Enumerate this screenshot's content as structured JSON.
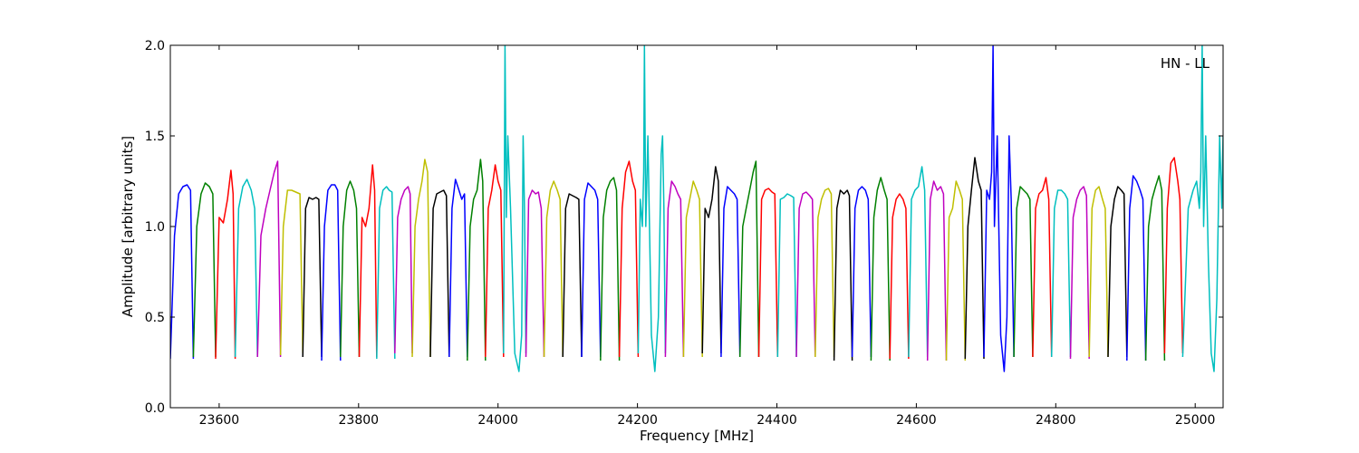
{
  "chart_data": {
    "type": "line",
    "title": "",
    "xlabel": "Frequency [MHz]",
    "ylabel": "Amplitude [arbitrary units]",
    "annotation": "HN - LL",
    "xlim": [
      23530,
      25040
    ],
    "ylim": [
      0.0,
      2.0
    ],
    "x_ticks": [
      23600,
      23800,
      24000,
      24200,
      24400,
      24600,
      24800,
      25000
    ],
    "y_ticks": [
      0.0,
      0.5,
      1.0,
      1.5,
      2.0
    ],
    "y_tick_labels": [
      "0.0",
      "0.5",
      "1.0",
      "1.5",
      "2.0"
    ],
    "grid": false,
    "color_cycle": [
      "#0000ff",
      "#008000",
      "#ff0000",
      "#00bfbf",
      "#bf00bf",
      "#bfbf00",
      "#000000"
    ],
    "segments": [
      {
        "x": [
          23530,
          23536,
          23542,
          23548,
          23554,
          23559,
          23563
        ],
        "y": [
          0.27,
          0.95,
          1.18,
          1.22,
          1.23,
          1.2,
          0.27
        ]
      },
      {
        "x": [
          23563,
          23568,
          23574,
          23580,
          23586,
          23591,
          23595
        ],
        "y": [
          0.28,
          1.0,
          1.18,
          1.24,
          1.22,
          1.18,
          0.28
        ]
      },
      {
        "x": [
          23595,
          23600,
          23606,
          23612,
          23617,
          23620,
          23623
        ],
        "y": [
          0.27,
          1.05,
          1.02,
          1.15,
          1.31,
          1.18,
          0.27
        ]
      },
      {
        "x": [
          23623,
          23628,
          23634,
          23640,
          23646,
          23651,
          23655
        ],
        "y": [
          0.28,
          1.1,
          1.22,
          1.26,
          1.2,
          1.1,
          0.28
        ]
      },
      {
        "x": [
          23655,
          23660,
          23667,
          23673,
          23679,
          23684,
          23688
        ],
        "y": [
          0.28,
          0.95,
          1.1,
          1.2,
          1.3,
          1.36,
          0.28
        ]
      },
      {
        "x": [
          23688,
          23692,
          23698,
          23704,
          23710,
          23716,
          23720
        ],
        "y": [
          0.29,
          1.0,
          1.2,
          1.2,
          1.19,
          1.18,
          0.3
        ]
      },
      {
        "x": [
          23720,
          23724,
          23729,
          23734,
          23739,
          23743,
          23747
        ],
        "y": [
          0.28,
          1.1,
          1.16,
          1.15,
          1.16,
          1.15,
          0.28
        ]
      },
      {
        "x": [
          23747,
          23751,
          23756,
          23761,
          23766,
          23770,
          23774
        ],
        "y": [
          0.26,
          1.0,
          1.2,
          1.23,
          1.23,
          1.2,
          0.26
        ]
      },
      {
        "x": [
          23774,
          23778,
          23783,
          23788,
          23793,
          23797,
          23801
        ],
        "y": [
          0.28,
          1.0,
          1.2,
          1.25,
          1.2,
          1.1,
          0.28
        ]
      },
      {
        "x": [
          23801,
          23805,
          23810,
          23815,
          23820,
          23823,
          23826
        ],
        "y": [
          0.28,
          1.05,
          1.0,
          1.1,
          1.34,
          1.2,
          0.28
        ]
      },
      {
        "x": [
          23826,
          23830,
          23835,
          23840,
          23844,
          23848,
          23852
        ],
        "y": [
          0.27,
          1.1,
          1.2,
          1.22,
          1.2,
          1.19,
          0.27
        ]
      },
      {
        "x": [
          23852,
          23856,
          23861,
          23866,
          23871,
          23874,
          23877
        ],
        "y": [
          0.3,
          1.05,
          1.15,
          1.2,
          1.22,
          1.18,
          0.3
        ]
      },
      {
        "x": [
          23877,
          23881,
          23886,
          23891,
          23895,
          23899,
          23903
        ],
        "y": [
          0.28,
          1.0,
          1.15,
          1.25,
          1.37,
          1.3,
          0.28
        ]
      },
      {
        "x": [
          23903,
          23907,
          23912,
          23917,
          23922,
          23926,
          23930
        ],
        "y": [
          0.28,
          1.1,
          1.18,
          1.19,
          1.2,
          1.17,
          0.28
        ]
      },
      {
        "x": [
          23930,
          23934,
          23939,
          23944,
          23948,
          23952,
          23956
        ],
        "y": [
          0.28,
          1.1,
          1.26,
          1.2,
          1.15,
          1.18,
          0.28
        ]
      },
      {
        "x": [
          23956,
          23960,
          23965,
          23970,
          23975,
          23978,
          23982
        ],
        "y": [
          0.26,
          1.0,
          1.15,
          1.2,
          1.37,
          1.25,
          0.26
        ]
      },
      {
        "x": [
          23982,
          23986,
          23991,
          23996,
          24000,
          24004,
          24008
        ],
        "y": [
          0.28,
          1.1,
          1.2,
          1.34,
          1.25,
          1.2,
          0.28
        ]
      },
      {
        "x": [
          24008,
          24010,
          24012,
          24014,
          24018,
          24024,
          24030,
          24034,
          24036,
          24038,
          24040
        ],
        "y": [
          0.3,
          2.0,
          1.05,
          1.5,
          1.1,
          0.3,
          0.2,
          0.4,
          1.5,
          1.1,
          0.3
        ]
      },
      {
        "x": [
          24040,
          24044,
          24049,
          24054,
          24058,
          24062,
          24066
        ],
        "y": [
          0.28,
          1.15,
          1.2,
          1.18,
          1.19,
          1.1,
          0.28
        ]
      },
      {
        "x": [
          24066,
          24070,
          24075,
          24080,
          24085,
          24089,
          24093
        ],
        "y": [
          0.28,
          1.05,
          1.2,
          1.25,
          1.2,
          1.15,
          0.28
        ]
      },
      {
        "x": [
          24093,
          24097,
          24102,
          24107,
          24112,
          24116,
          24120
        ],
        "y": [
          0.28,
          1.1,
          1.18,
          1.17,
          1.16,
          1.15,
          0.28
        ]
      },
      {
        "x": [
          24120,
          24124,
          24129,
          24134,
          24139,
          24143,
          24147
        ],
        "y": [
          0.28,
          1.15,
          1.24,
          1.22,
          1.2,
          1.15,
          0.28
        ]
      },
      {
        "x": [
          24147,
          24151,
          24156,
          24161,
          24166,
          24170,
          24174
        ],
        "y": [
          0.26,
          1.05,
          1.2,
          1.25,
          1.27,
          1.2,
          0.26
        ]
      },
      {
        "x": [
          24174,
          24178,
          24183,
          24188,
          24193,
          24197,
          24201
        ],
        "y": [
          0.28,
          1.1,
          1.3,
          1.36,
          1.25,
          1.2,
          0.28
        ]
      },
      {
        "x": [
          24201,
          24204,
          24207,
          24209,
          24210,
          24212,
          24215,
          24220,
          24225,
          24230,
          24234,
          24236,
          24238,
          24240
        ],
        "y": [
          0.3,
          1.15,
          1.0,
          1.3,
          2.0,
          1.0,
          1.5,
          0.4,
          0.2,
          0.5,
          1.4,
          1.5,
          1.1,
          0.3
        ]
      },
      {
        "x": [
          24240,
          24244,
          24249,
          24254,
          24258,
          24262,
          24266
        ],
        "y": [
          0.28,
          1.1,
          1.25,
          1.22,
          1.18,
          1.15,
          0.28
        ]
      },
      {
        "x": [
          24266,
          24270,
          24275,
          24280,
          24285,
          24289,
          24293
        ],
        "y": [
          0.28,
          1.05,
          1.15,
          1.25,
          1.2,
          1.15,
          0.28
        ]
      },
      {
        "x": [
          24293,
          24297,
          24302,
          24307,
          24312,
          24316,
          24320
        ],
        "y": [
          0.3,
          1.1,
          1.05,
          1.15,
          1.33,
          1.25,
          0.3
        ]
      },
      {
        "x": [
          24320,
          24324,
          24329,
          24334,
          24339,
          24343,
          24347
        ],
        "y": [
          0.28,
          1.1,
          1.22,
          1.2,
          1.18,
          1.15,
          0.28
        ]
      },
      {
        "x": [
          24347,
          24351,
          24356,
          24361,
          24366,
          24370,
          24374
        ],
        "y": [
          0.28,
          1.0,
          1.1,
          1.2,
          1.3,
          1.36,
          0.28
        ]
      },
      {
        "x": [
          24374,
          24378,
          24383,
          24388,
          24393,
          24397,
          24401
        ],
        "y": [
          0.28,
          1.15,
          1.2,
          1.21,
          1.19,
          1.18,
          0.28
        ]
      },
      {
        "x": [
          24401,
          24405,
          24410,
          24415,
          24420,
          24424,
          24428
        ],
        "y": [
          0.28,
          1.15,
          1.16,
          1.18,
          1.17,
          1.16,
          0.28
        ]
      },
      {
        "x": [
          24428,
          24432,
          24437,
          24442,
          24447,
          24451,
          24455
        ],
        "y": [
          0.28,
          1.1,
          1.18,
          1.19,
          1.17,
          1.15,
          0.28
        ]
      },
      {
        "x": [
          24455,
          24459,
          24464,
          24469,
          24474,
          24478,
          24482
        ],
        "y": [
          0.28,
          1.05,
          1.15,
          1.2,
          1.21,
          1.18,
          0.28
        ]
      },
      {
        "x": [
          24482,
          24486,
          24491,
          24496,
          24501,
          24504,
          24508
        ],
        "y": [
          0.26,
          1.1,
          1.2,
          1.18,
          1.2,
          1.17,
          0.26
        ]
      },
      {
        "x": [
          24508,
          24512,
          24517,
          24522,
          24527,
          24531,
          24535
        ],
        "y": [
          0.28,
          1.1,
          1.2,
          1.22,
          1.2,
          1.15,
          0.28
        ]
      },
      {
        "x": [
          24535,
          24539,
          24544,
          24549,
          24554,
          24558,
          24562
        ],
        "y": [
          0.26,
          1.05,
          1.2,
          1.27,
          1.2,
          1.15,
          0.26
        ]
      },
      {
        "x": [
          24562,
          24566,
          24571,
          24576,
          24581,
          24585,
          24589
        ],
        "y": [
          0.27,
          1.05,
          1.15,
          1.18,
          1.15,
          1.1,
          0.27
        ]
      },
      {
        "x": [
          24589,
          24593,
          24598,
          24603,
          24608,
          24612,
          24616
        ],
        "y": [
          0.28,
          1.15,
          1.2,
          1.22,
          1.33,
          1.2,
          0.28
        ]
      },
      {
        "x": [
          24616,
          24620,
          24625,
          24630,
          24635,
          24639,
          24643
        ],
        "y": [
          0.26,
          1.15,
          1.25,
          1.2,
          1.22,
          1.18,
          0.26
        ]
      },
      {
        "x": [
          24643,
          24647,
          24652,
          24657,
          24662,
          24666,
          24670
        ],
        "y": [
          0.26,
          1.05,
          1.1,
          1.25,
          1.2,
          1.15,
          0.26
        ]
      },
      {
        "x": [
          24670,
          24674,
          24679,
          24684,
          24689,
          24693,
          24697
        ],
        "y": [
          0.27,
          1.0,
          1.2,
          1.38,
          1.25,
          1.2,
          0.27
        ]
      },
      {
        "x": [
          24697,
          24701,
          24705,
          24708,
          24710,
          24712,
          24716,
          24721,
          24726,
          24730,
          24733,
          24736,
          24740
        ],
        "y": [
          0.28,
          1.2,
          1.15,
          1.3,
          2.0,
          1.0,
          1.5,
          0.4,
          0.2,
          0.5,
          1.5,
          1.15,
          0.28
        ]
      },
      {
        "x": [
          24740,
          24744,
          24749,
          24754,
          24759,
          24763,
          24767
        ],
        "y": [
          0.28,
          1.1,
          1.22,
          1.2,
          1.18,
          1.15,
          0.28
        ]
      },
      {
        "x": [
          24767,
          24771,
          24776,
          24781,
          24786,
          24790,
          24794
        ],
        "y": [
          0.28,
          1.1,
          1.18,
          1.2,
          1.27,
          1.15,
          0.28
        ]
      },
      {
        "x": [
          24794,
          24798,
          24803,
          24808,
          24813,
          24817,
          24821
        ],
        "y": [
          0.28,
          1.1,
          1.2,
          1.2,
          1.18,
          1.15,
          0.28
        ]
      },
      {
        "x": [
          24821,
          24825,
          24830,
          24835,
          24840,
          24844,
          24848
        ],
        "y": [
          0.27,
          1.05,
          1.15,
          1.2,
          1.22,
          1.17,
          0.27
        ]
      },
      {
        "x": [
          24848,
          24852,
          24857,
          24862,
          24867,
          24871,
          24875
        ],
        "y": [
          0.28,
          1.1,
          1.2,
          1.22,
          1.15,
          1.1,
          0.28
        ]
      },
      {
        "x": [
          24875,
          24879,
          24884,
          24889,
          24894,
          24898,
          24902
        ],
        "y": [
          0.28,
          1.0,
          1.15,
          1.22,
          1.2,
          1.18,
          0.28
        ]
      },
      {
        "x": [
          24902,
          24906,
          24911,
          24916,
          24921,
          24925,
          24929
        ],
        "y": [
          0.26,
          1.1,
          1.28,
          1.25,
          1.2,
          1.15,
          0.26
        ]
      },
      {
        "x": [
          24929,
          24933,
          24938,
          24943,
          24948,
          24952,
          24956
        ],
        "y": [
          0.26,
          1.0,
          1.15,
          1.22,
          1.28,
          1.2,
          0.26
        ]
      },
      {
        "x": [
          24956,
          24960,
          24965,
          24970,
          24975,
          24978,
          24982
        ],
        "y": [
          0.3,
          1.1,
          1.35,
          1.38,
          1.25,
          1.15,
          0.3
        ]
      },
      {
        "x": [
          24982,
          24990,
          24997,
          25002,
          25006,
          25008,
          25010,
          25012,
          25015,
          25019,
          25023,
          25027,
          25031,
          25035,
          25038,
          25040
        ],
        "y": [
          0.28,
          1.1,
          1.2,
          1.25,
          1.1,
          1.3,
          2.0,
          1.0,
          1.5,
          0.8,
          0.3,
          0.2,
          0.6,
          1.5,
          1.1,
          1.5
        ]
      }
    ]
  }
}
